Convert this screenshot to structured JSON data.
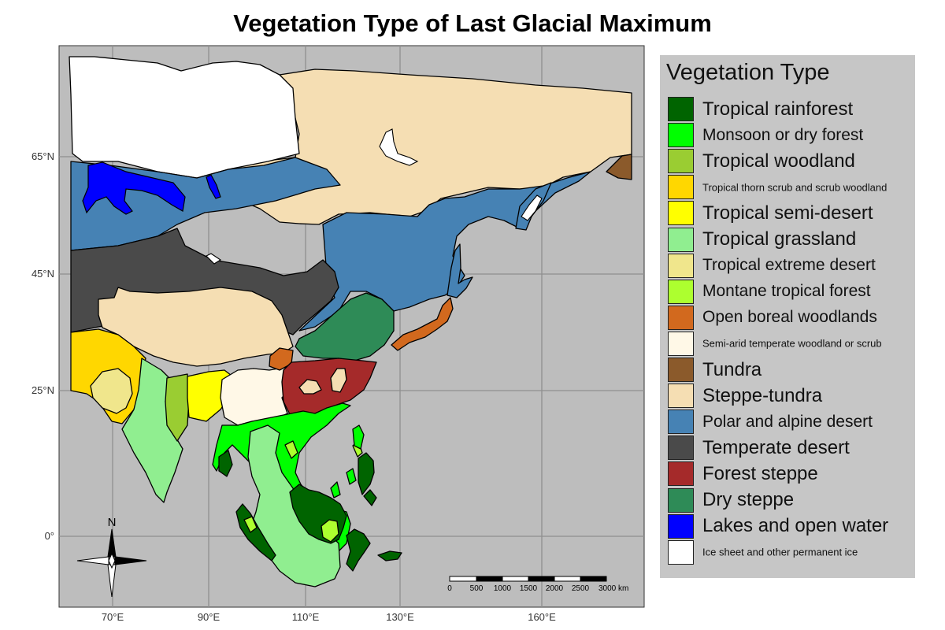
{
  "title": "Vegetation Type of Last Glacial Maximum",
  "axes": {
    "x_ticks": [
      "70°E",
      "90°E",
      "110°E",
      "130°E",
      "160°E"
    ],
    "y_ticks": [
      "65°N",
      "45°N",
      "25°N",
      "0°"
    ]
  },
  "north_arrow": "N",
  "scale_bar": {
    "labels": [
      "0",
      "500",
      "1000",
      "1500",
      "2000",
      "2500",
      "3000 km"
    ]
  },
  "legend": {
    "title": "Vegetation Type",
    "items": [
      {
        "label": "Tropical rainforest",
        "color": "#006400",
        "size": "large"
      },
      {
        "label": "Monsoon or dry forest",
        "color": "#00ff00",
        "size": "medium"
      },
      {
        "label": "Tropical woodland",
        "color": "#9acd32",
        "size": "large"
      },
      {
        "label": "Tropical thorn scrub and scrub woodland",
        "color": "#ffd700",
        "size": "small"
      },
      {
        "label": "Tropical semi-desert",
        "color": "#ffff00",
        "size": "large"
      },
      {
        "label": "Tropical grassland",
        "color": "#90ee90",
        "size": "large"
      },
      {
        "label": "Tropical extreme desert",
        "color": "#f0e68c",
        "size": "medium"
      },
      {
        "label": "Montane tropical forest",
        "color": "#adff2f",
        "size": "medium"
      },
      {
        "label": "Open boreal woodlands",
        "color": "#d2691e",
        "size": "medium"
      },
      {
        "label": "Semi-arid temperate woodland or scrub",
        "color": "#fff8e7",
        "size": "small"
      },
      {
        "label": "Tundra",
        "color": "#8b5a2b",
        "size": "large"
      },
      {
        "label": "Steppe-tundra",
        "color": "#f5deb3",
        "size": "large"
      },
      {
        "label": "Polar and alpine desert",
        "color": "#4682b4",
        "size": "medium"
      },
      {
        "label": "Temperate desert",
        "color": "#4a4a4a",
        "size": "large"
      },
      {
        "label": "Forest steppe",
        "color": "#a52a2a",
        "size": "large"
      },
      {
        "label": "Dry steppe",
        "color": "#2e8b57",
        "size": "large"
      },
      {
        "label": "Lakes and open water",
        "color": "#0000ff",
        "size": "large"
      },
      {
        "label": "Ice sheet and other permanent ice",
        "color": "#ffffff",
        "size": "small"
      }
    ]
  }
}
